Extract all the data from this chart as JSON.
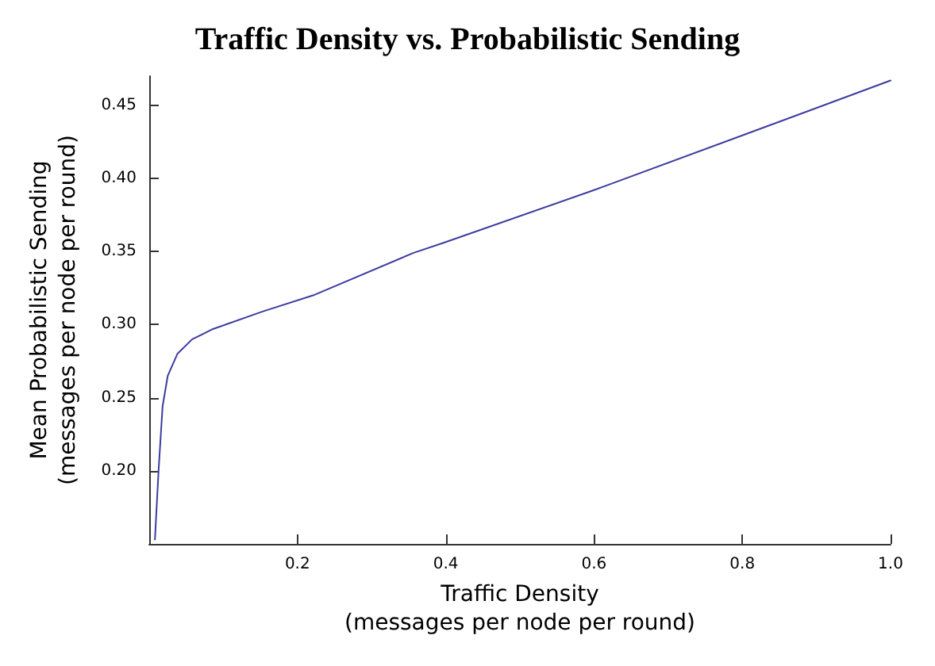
{
  "chart_data": {
    "type": "line",
    "title": "Traffic Density vs. Probabilistic Sending",
    "xlabel": "Traffic Density\n(messages per node per round)",
    "ylabel": "Mean Probabilistic Sending\n(messages per node per round)",
    "x": [
      0.0077,
      0.0126,
      0.018,
      0.025,
      0.038,
      0.058,
      0.086,
      0.153,
      0.221,
      0.356,
      0.397,
      0.6,
      0.803,
      1.0
    ],
    "series": [
      {
        "color": "#3c3ca0",
        "values": [
          0.153,
          0.2,
          0.244,
          0.265,
          0.28,
          0.29,
          0.297,
          0.309,
          0.32,
          0.349,
          0.356,
          0.392,
          0.43,
          0.467
        ]
      }
    ],
    "xlim": [
      0,
      1
    ],
    "xticks": [
      0.2,
      0.4,
      0.6,
      0.8,
      {
        "value": 1,
        "label": "1.0"
      }
    ],
    "ylim": [
      0.15,
      0.47
    ],
    "yticks": [
      {
        "value": 0.2,
        "label": "0.20"
      },
      0.25,
      {
        "value": 0.3,
        "label": "0.30"
      },
      0.35,
      {
        "value": 0.4,
        "label": "0.40"
      },
      0.45
    ],
    "grid": false,
    "marker": "none",
    "line_style": "solid"
  }
}
